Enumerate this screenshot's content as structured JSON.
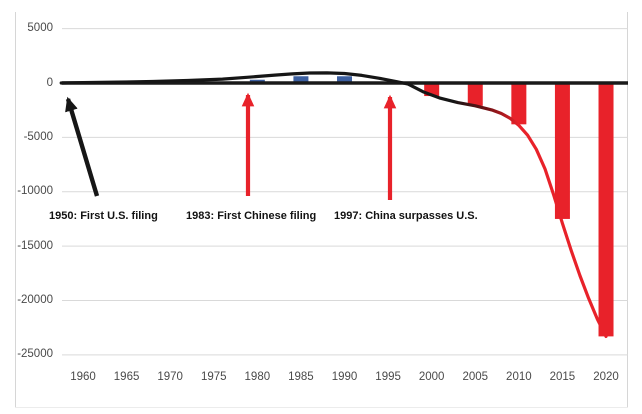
{
  "chart_data": {
    "type": "bar+line",
    "title": "",
    "description": "Difference between U.S. and Chinese patent filings over time; positive = U.S. ahead (blue bars), negative = China ahead (red bars), with a trend line turning from black to red as China surpasses the U.S.",
    "grid": true,
    "legend": "none",
    "xlabel": "",
    "ylabel": "",
    "ylim": [
      -25000,
      5000
    ],
    "x_axis_years_range": [
      1958,
      2022
    ],
    "y_tick_values": [
      5000,
      0,
      -5000,
      -10000,
      -15000,
      -20000,
      -25000
    ],
    "y_tick_labels": [
      "5000",
      "0",
      "-5000",
      "-10000",
      "-15000",
      "-20000",
      "-25000"
    ],
    "x_tick_years": [
      1960,
      1965,
      1970,
      1975,
      1980,
      1985,
      1990,
      1995,
      2000,
      2005,
      2010,
      2015,
      2020
    ],
    "x_tick_labels": [
      "1960",
      "1965",
      "1970",
      "1975",
      "1980",
      "1985",
      "1990",
      "1995",
      "2000",
      "2005",
      "2010",
      "2015",
      "2020"
    ],
    "bars": [
      {
        "year": 1980,
        "value": 300
      },
      {
        "year": 1985,
        "value": 620
      },
      {
        "year": 1990,
        "value": 620
      },
      {
        "year": 2000,
        "value": -1200
      },
      {
        "year": 2005,
        "value": -2100
      },
      {
        "year": 2010,
        "value": -3800
      },
      {
        "year": 2015,
        "value": -12500
      },
      {
        "year": 2020,
        "value": -23300
      }
    ],
    "line": {
      "name": "filing-difference-line",
      "points": [
        [
          1957.5,
          0
        ],
        [
          1960,
          40
        ],
        [
          1964,
          80
        ],
        [
          1968,
          140
        ],
        [
          1972,
          230
        ],
        [
          1976,
          360
        ],
        [
          1979,
          530
        ],
        [
          1982,
          730
        ],
        [
          1984,
          840
        ],
        [
          1986,
          920
        ],
        [
          1988,
          930
        ],
        [
          1990,
          870
        ],
        [
          1992,
          700
        ],
        [
          1994,
          430
        ],
        [
          1996,
          120
        ],
        [
          1997.3,
          -100
        ],
        [
          1999,
          -800
        ],
        [
          2001,
          -1400
        ],
        [
          2003,
          -1800
        ],
        [
          2005,
          -2100
        ],
        [
          2007,
          -2500
        ],
        [
          2008,
          -2800
        ],
        [
          2009,
          -3250
        ],
        [
          2010,
          -3900
        ],
        [
          2011,
          -4800
        ],
        [
          2012,
          -6100
        ],
        [
          2013,
          -7900
        ],
        [
          2014,
          -10300
        ],
        [
          2015,
          -12900
        ],
        [
          2016,
          -15400
        ],
        [
          2017,
          -17700
        ],
        [
          2018,
          -19800
        ],
        [
          2019,
          -21700
        ],
        [
          2020,
          -23300
        ]
      ],
      "gradient_stops": [
        [
          0,
          "#161616"
        ],
        [
          0.72,
          "#161616"
        ],
        [
          0.78,
          "#6e1114"
        ],
        [
          0.84,
          "#e8222a"
        ],
        [
          1,
          "#e8222a"
        ]
      ]
    },
    "annotations": [
      {
        "label": "1950: First U.S. filing",
        "arrow_color": "#161616"
      },
      {
        "label": "1983: First Chinese filing",
        "arrow_color": "#e8222a"
      },
      {
        "label": "1997: China surpasses U.S.",
        "arrow_color": "#e8222a"
      }
    ],
    "colors": {
      "positive_bar": "#3c5fa0",
      "negative_bar": "#e8222a",
      "line_start": "#161616",
      "line_end": "#e8222a",
      "gridline": "#d9d9d9",
      "zero_line": "#1a1a1a",
      "axis_text": "#4a4a4a",
      "annotation_text": "#121212",
      "border": "#d6d6d6"
    }
  }
}
